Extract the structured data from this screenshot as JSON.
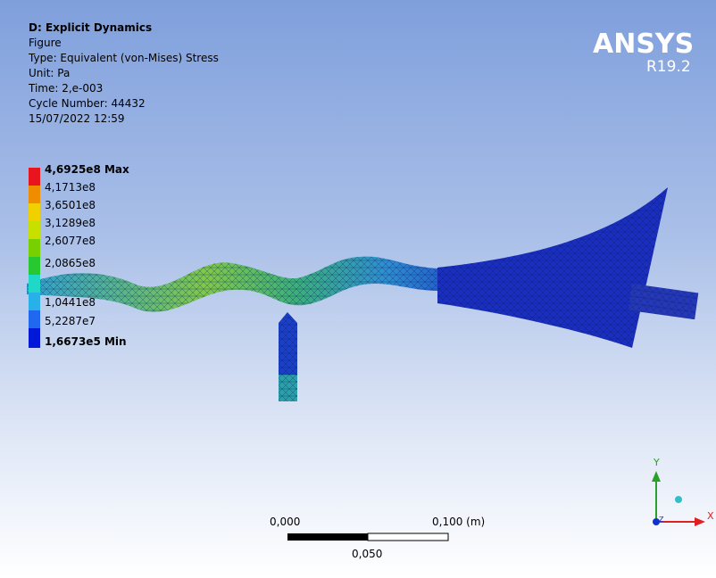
{
  "header": {
    "title": "D: Explicit Dynamics",
    "lines": [
      "Figure",
      "Type: Equivalent (von-Mises) Stress",
      "Unit: Pa",
      "Time: 2,e-003",
      "Cycle Number: 44432",
      "15/07/2022 12:59"
    ]
  },
  "logo": {
    "name": "ANSYS",
    "version": "R19.2"
  },
  "legend": {
    "max": "4,6925e8 Max",
    "labels": [
      "4,1713e8",
      "3,6501e8",
      "3,1289e8",
      "2,6077e8",
      "2,0865e8",
      "1,0441e8",
      "5,2287e7"
    ],
    "min": "1,6673e5 Min"
  },
  "scale_bar": {
    "start": "0,000",
    "end": "0,100 (m)",
    "middle": "0,050"
  },
  "triad": {
    "y": "Y",
    "x": "X",
    "z": "Z"
  }
}
